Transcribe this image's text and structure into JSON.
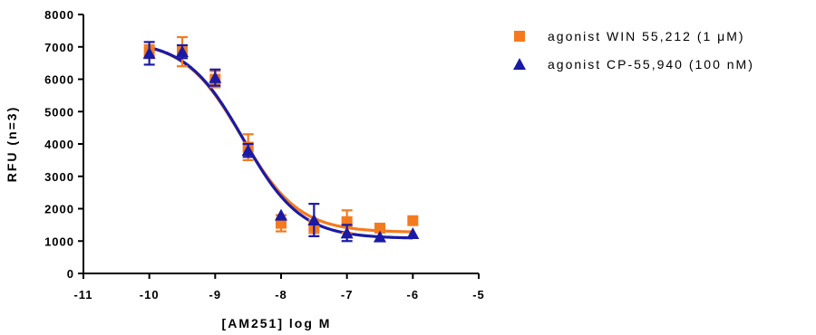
{
  "chart_data": {
    "type": "scatter",
    "title": "",
    "xlabel": "[AM251] log M",
    "ylabel": "RFU (n=3)",
    "xlim": [
      -11,
      -5
    ],
    "ylim": [
      0,
      8000
    ],
    "x_ticks": [
      "-11",
      "-10",
      "-9",
      "-8",
      "-7",
      "-6",
      "-5"
    ],
    "y_ticks": [
      "0",
      "1000",
      "2000",
      "3000",
      "4000",
      "5000",
      "6000",
      "7000",
      "8000"
    ],
    "grid": false,
    "legend_position": "top-right",
    "series": [
      {
        "name": "agonist WIN 55,212 (1 μM)",
        "marker": "square",
        "color": "#f47a20",
        "x": [
          -10,
          -9.5,
          -9,
          -8.5,
          -8,
          -7.5,
          -7,
          -6.5,
          -6
        ],
        "y": [
          6850,
          6850,
          6000,
          3900,
          1550,
          1450,
          1600,
          1400,
          1630
        ],
        "yerr": [
          200,
          450,
          250,
          400,
          250,
          200,
          350,
          0,
          0
        ],
        "fit": {
          "top": 7200,
          "bottom": 1270,
          "logEC50": -8.6,
          "hill": 1.0
        }
      },
      {
        "name": "agonist CP-55,940 (100 nM)",
        "marker": "triangle",
        "color": "#1a1aa6",
        "x": [
          -10,
          -9.5,
          -9,
          -8.5,
          -8,
          -7.5,
          -7,
          -6.5,
          -6
        ],
        "y": [
          6800,
          6850,
          6050,
          3800,
          1800,
          1650,
          1250,
          1130,
          1230
        ],
        "yerr": [
          350,
          200,
          250,
          200,
          0,
          500,
          250,
          0,
          0
        ],
        "fit": {
          "top": 7200,
          "bottom": 1080,
          "logEC50": -8.57,
          "hill": 1.0
        }
      }
    ]
  }
}
